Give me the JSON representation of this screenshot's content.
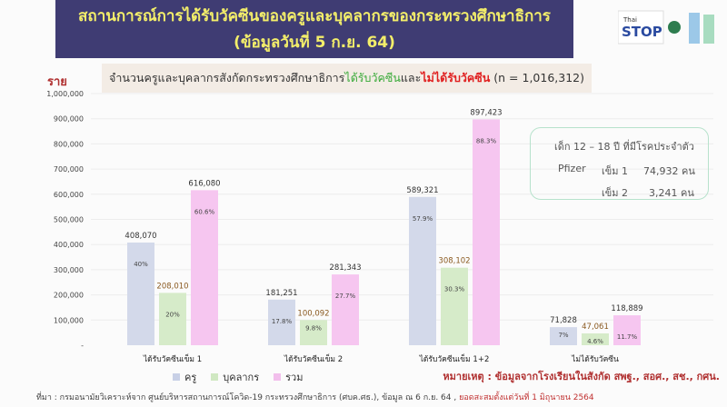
{
  "header": {
    "title_line1": "สถานการณ์การได้รับวัคซีนของครูและบุคลากรของกระทรวงศึกษาธิการ",
    "title_line2": "(ข้อมูลวันที่ 5 ก.ย. 64)"
  },
  "logo": {
    "text": "Thai STOP covid"
  },
  "subtitle": {
    "part1": "จำนวนครูและบุคลากรสังกัดกระทรวงศึกษาธิการ",
    "green": "ได้รับวัคซีน",
    "mid": "และ",
    "red": "ไม่ได้รับวัคซีน",
    "end": " (n = 1,016,312)"
  },
  "chart_data": {
    "type": "bar",
    "ylabel": "ราย",
    "ylim": [
      0,
      1000000
    ],
    "yticks": [
      "-",
      "100,000",
      "200,000",
      "300,000",
      "400,000",
      "500,000",
      "600,000",
      "700,000",
      "800,000",
      "900,000",
      "1,000,000"
    ],
    "categories": [
      "ได้รับวัคซีนเข็ม 1",
      "ได้รับวัคซีนเข็ม 2",
      "ได้รับวัคซีนเข็ม 1+2",
      "ไม่ได้รับวัคซีน"
    ],
    "series": [
      {
        "name": "ครู",
        "color": "#d3d9ea",
        "values": [
          408070,
          181251,
          589321,
          71828
        ],
        "labels": [
          "408,070",
          "181,251",
          "589,321",
          "71,828"
        ],
        "pct": [
          "40%",
          "17.8%",
          "57.9%",
          "7%"
        ]
      },
      {
        "name": "บุคลากร",
        "color": "#d6ebc9",
        "values": [
          208010,
          100092,
          308102,
          47061
        ],
        "labels": [
          "208,010",
          "100,092",
          "308,102",
          "47,061"
        ],
        "pct": [
          "20%",
          "9.8%",
          "30.3%",
          "4.6%"
        ]
      },
      {
        "name": "รวม",
        "color": "#f6c6f0",
        "values": [
          616080,
          281343,
          897423,
          118889
        ],
        "labels": [
          "616,080",
          "281,343",
          "897,423",
          "118,889"
        ],
        "pct": [
          "60.6%",
          "27.7%",
          "88.3%",
          "11.7%"
        ]
      }
    ],
    "legend": "bottom"
  },
  "note": {
    "title": "เด็ก 12 – 18 ปี ที่มีโรคประจำตัว",
    "vaccine": "Pfizer",
    "dose1": "เข็ม 1",
    "dose1_value": "74,932 คน",
    "dose2": "เข็ม 2",
    "dose2_value": "3,241 คน"
  },
  "remark": "หมายเหตุ : ข้อมูลจากโรงเรียนในสังกัด สพฐ., สอศ., สช., กศน.",
  "source": {
    "text": "ที่มา : กรมอนามัยวิเคราะห์จาก ศูนย์บริหารสถานการณ์โควิด-19 กระทรวงศึกษาธิการ (ศบค.ศธ.), ข้อมูล ณ 6 ก.ย. 64 ,",
    "highlight": "ยอดสะสมตั้งแต่วันที่ 1 มิถุนายน 2564"
  }
}
